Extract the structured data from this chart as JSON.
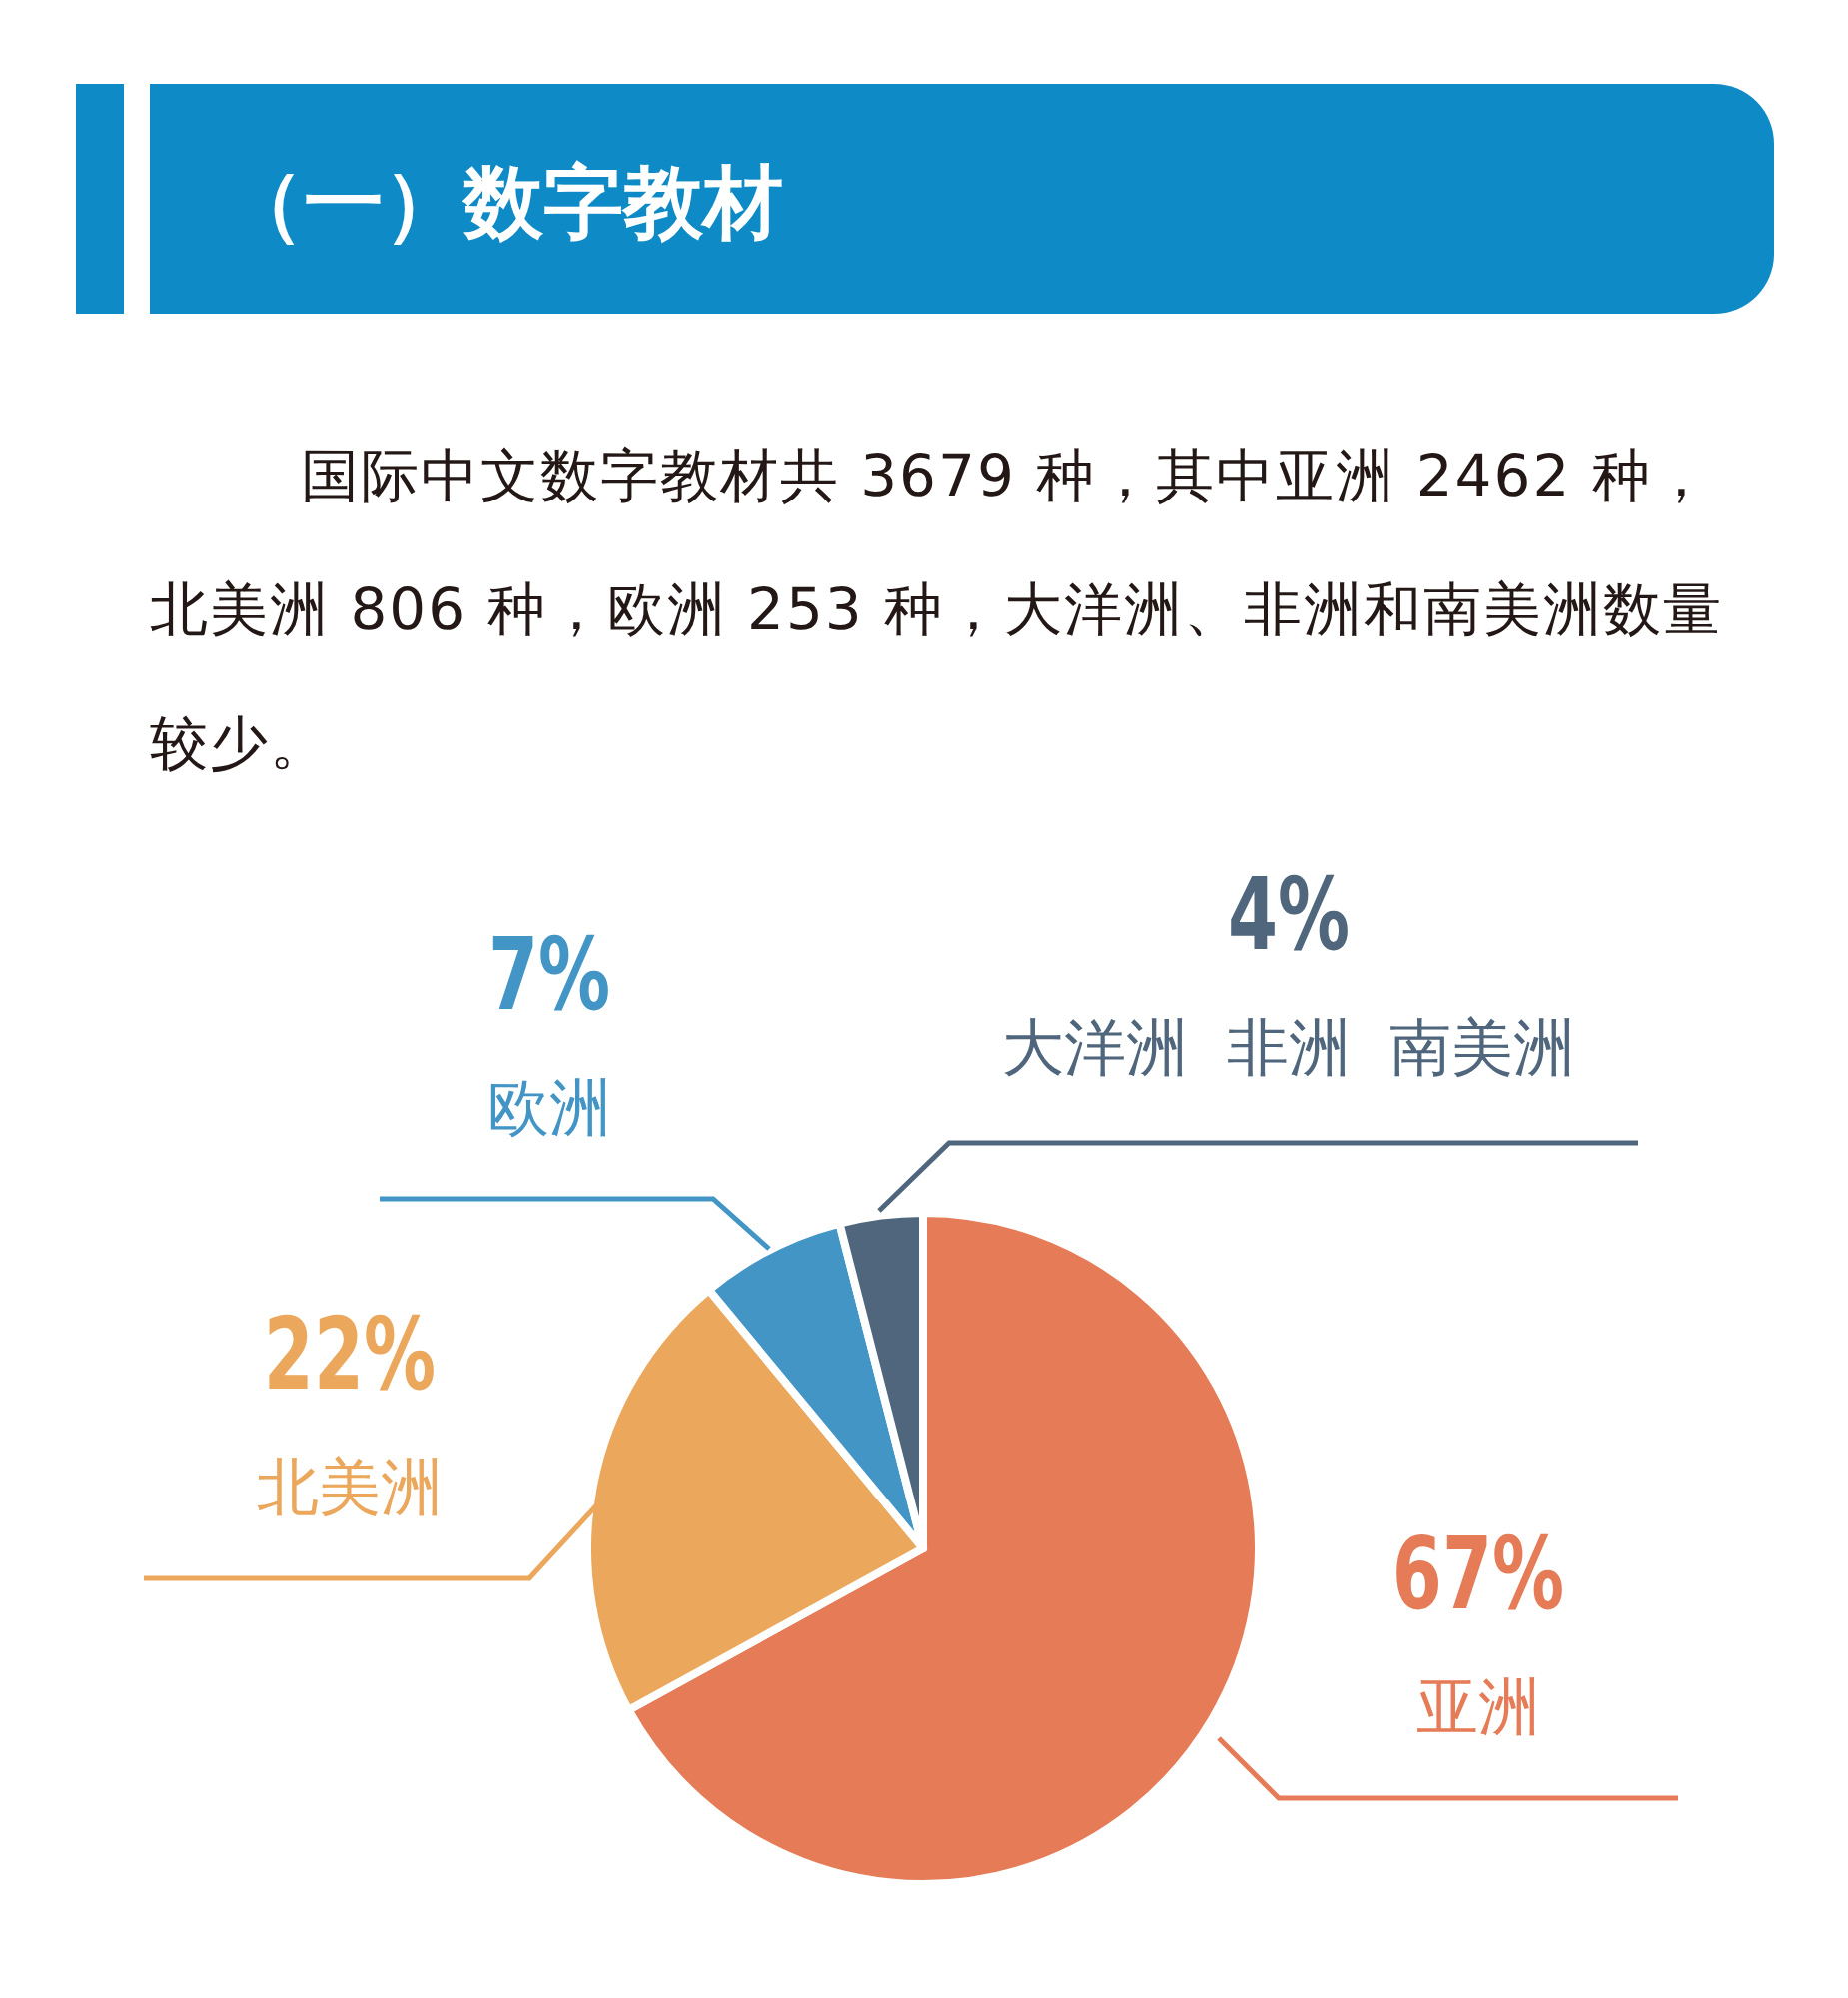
{
  "chart_data": {
    "type": "pie",
    "title": "（一）数字教材",
    "subtitle": "国际中文数字教材共 3679 种，其中亚洲 2462 种，北美洲 806 种，欧洲 253 种，大洋洲、非洲和南美洲数量较少。",
    "categories": [
      "亚洲",
      "北美洲",
      "欧洲",
      "大洋洲  非洲  南美洲"
    ],
    "values": [
      67,
      22,
      7,
      4
    ],
    "value_labels": [
      "67%",
      "22%",
      "7%",
      "4%"
    ],
    "colors": [
      "#e57c57",
      "#eba75c",
      "#4395c6",
      "#4f667d"
    ]
  }
}
